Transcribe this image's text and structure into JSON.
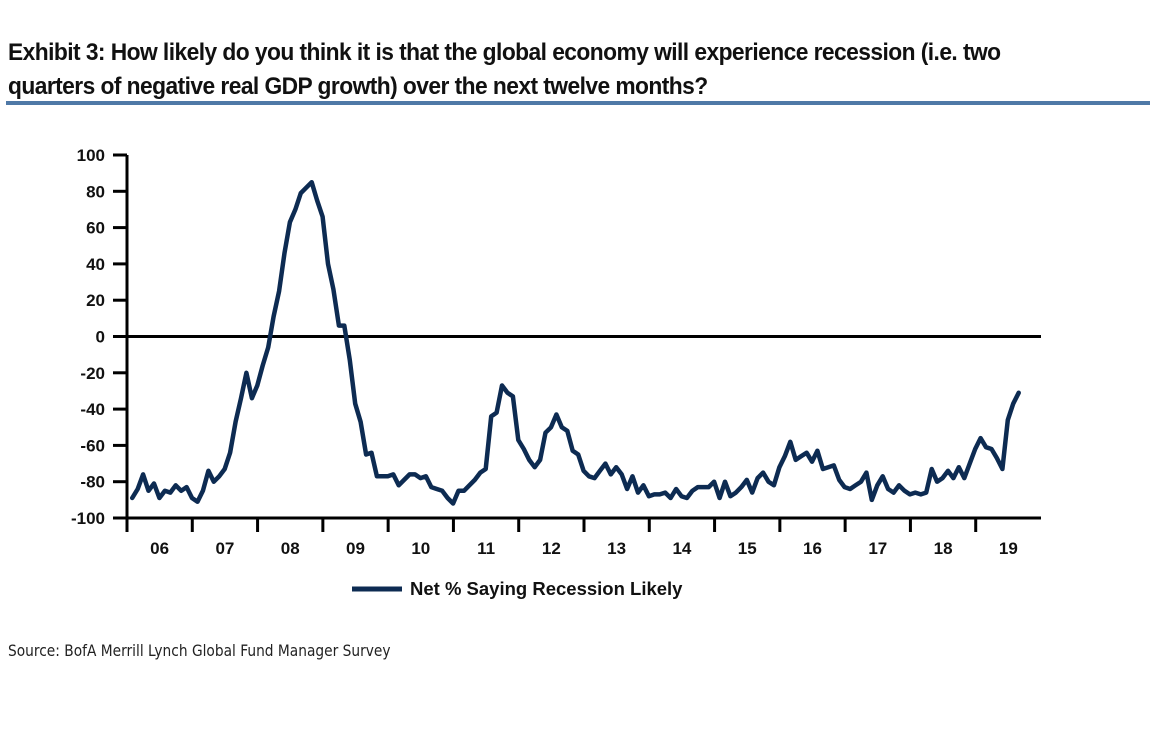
{
  "exhibit": {
    "title_lines": [
      "Exhibit 3: How likely do you think it is that the global economy will experience recession (i.e. two",
      "quarters of negative real GDP growth) over the next twelve months?"
    ],
    "source": "Source:  BofA Merrill Lynch Global Fund Manager Survey",
    "rule_color": "#4f79a7"
  },
  "chart_data": {
    "type": "line",
    "title": "How likely do you think it is that the global economy will experience recession (i.e. two quarters of negative real GDP growth) over the next twelve months?",
    "xlabel": "",
    "ylabel": "",
    "ylim": [
      -100,
      100
    ],
    "xlim": [
      2006,
      2020
    ],
    "yticks": [
      100,
      80,
      60,
      40,
      20,
      0,
      -20,
      -40,
      -60,
      -80,
      -100
    ],
    "ytick_labels": [
      "100",
      "80",
      "60",
      "40",
      "20",
      "0",
      "-20",
      "-40",
      "-60",
      "-80",
      "-100"
    ],
    "xtick_labels": [
      "06",
      "07",
      "08",
      "09",
      "10",
      "11",
      "12",
      "13",
      "14",
      "15",
      "16",
      "17",
      "18",
      "19"
    ],
    "grid": false,
    "zero_line": true,
    "legend": {
      "position": "bottom-center",
      "entries": [
        "Net % Saying Recession Likely"
      ]
    },
    "series": [
      {
        "name": "Net % Saying Recession Likely",
        "color": "#0d2b52",
        "x_start": 2006.08,
        "x_step": 0.0833,
        "values": [
          -89,
          -84,
          -76,
          -85,
          -81,
          -89,
          -85,
          -86,
          -82,
          -85,
          -83,
          -89,
          -91,
          -85,
          -74,
          -80,
          -77,
          -73,
          -64,
          -47,
          -34,
          -20,
          -34,
          -27,
          -16,
          -6,
          11,
          25,
          46,
          63,
          70,
          79,
          82,
          85,
          75,
          66,
          40,
          26,
          6,
          6,
          -13,
          -37,
          -47,
          -65,
          -64,
          -77,
          -77,
          -77,
          -76,
          -82,
          -79,
          -76,
          -76,
          -78,
          -77,
          -83,
          -84,
          -85,
          -89,
          -92,
          -85,
          -85,
          -82,
          -79,
          -75,
          -73,
          -44,
          -42,
          -27,
          -31,
          -33,
          -57,
          -62,
          -68,
          -72,
          -68,
          -53,
          -50,
          -43,
          -50,
          -52,
          -63,
          -65,
          -74,
          -77,
          -78,
          -74,
          -70,
          -76,
          -72,
          -76,
          -84,
          -77,
          -86,
          -82,
          -88,
          -87,
          -87,
          -86,
          -89,
          -84,
          -88,
          -89,
          -85,
          -83,
          -83,
          -83,
          -80,
          -89,
          -80,
          -88,
          -86,
          -83,
          -79,
          -86,
          -78,
          -75,
          -80,
          -82,
          -72,
          -66,
          -58,
          -68,
          -66,
          -64,
          -69,
          -63,
          -73,
          -72,
          -71,
          -79,
          -83,
          -84,
          -82,
          -80,
          -75,
          -90,
          -82,
          -77,
          -84,
          -86,
          -82,
          -85,
          -87,
          -86,
          -87,
          -86,
          -73,
          -80,
          -78,
          -74,
          -78,
          -72,
          -78,
          -70,
          -62,
          -56,
          -61,
          -62,
          -67,
          -73,
          -46,
          -37,
          -31
        ]
      }
    ]
  }
}
